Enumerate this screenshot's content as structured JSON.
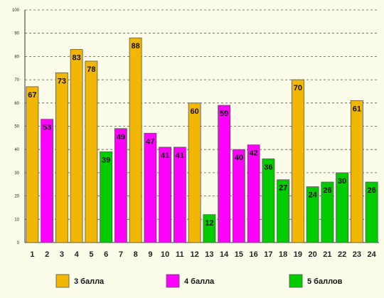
{
  "chart_data": {
    "type": "bar",
    "title": "",
    "xlabel": "",
    "ylabel": "",
    "ylim": [
      0,
      100
    ],
    "y_ticks": [
      "0",
      "10",
      "20",
      "30",
      "40",
      "50",
      "60",
      "70",
      "80",
      "90",
      "100"
    ],
    "grid": true,
    "legend_position": "bottom",
    "categories": [
      "1",
      "2",
      "3",
      "4",
      "5",
      "6",
      "7",
      "8",
      "9",
      "10",
      "11",
      "12",
      "13",
      "14",
      "15",
      "16",
      "17",
      "18",
      "19",
      "20",
      "21",
      "22",
      "23",
      "24"
    ],
    "values": [
      67,
      53,
      73,
      83,
      78,
      39,
      49,
      88,
      47,
      41,
      41,
      60,
      12,
      59,
      40,
      42,
      36,
      27,
      70,
      24,
      26,
      30,
      61,
      26
    ],
    "value_labels": [
      "67",
      "53",
      "73",
      "83",
      "78",
      "39",
      "49",
      "88",
      "47",
      "41",
      "41",
      "60",
      "12",
      "59",
      "40",
      "42",
      "36",
      "27",
      "70",
      "24",
      "26",
      "30",
      "61",
      "26"
    ],
    "groups": [
      0,
      1,
      0,
      0,
      0,
      2,
      1,
      0,
      1,
      1,
      1,
      0,
      2,
      1,
      1,
      1,
      2,
      2,
      0,
      2,
      2,
      2,
      0,
      2
    ],
    "series": [
      {
        "name": "3 балла",
        "color": "#f2b705"
      },
      {
        "name": "4 балла",
        "color": "#ff00ff"
      },
      {
        "name": "5 баллов",
        "color": "#00cc00"
      }
    ]
  }
}
